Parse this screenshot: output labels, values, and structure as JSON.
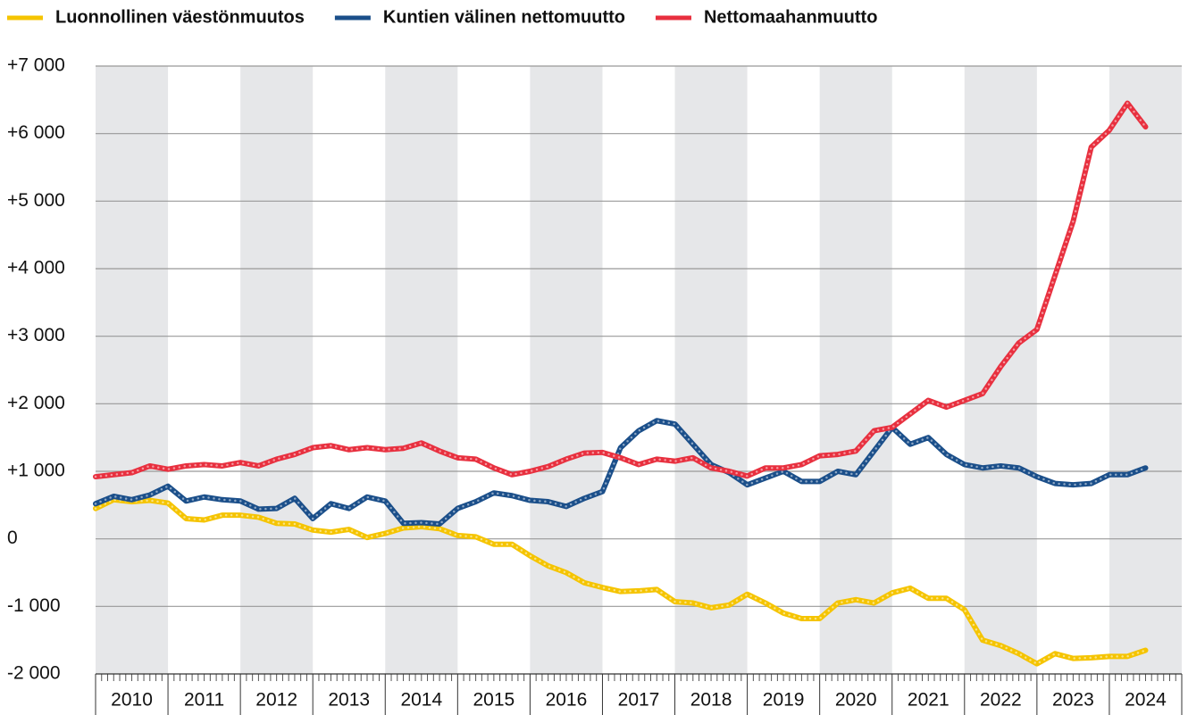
{
  "chart_data": {
    "type": "line",
    "x": [
      2010,
      2010.25,
      2010.5,
      2010.75,
      2011,
      2011.25,
      2011.5,
      2011.75,
      2012,
      2012.25,
      2012.5,
      2012.75,
      2013,
      2013.25,
      2013.5,
      2013.75,
      2014,
      2014.25,
      2014.5,
      2014.75,
      2015,
      2015.25,
      2015.5,
      2015.75,
      2016,
      2016.25,
      2016.5,
      2016.75,
      2017,
      2017.25,
      2017.5,
      2017.75,
      2018,
      2018.25,
      2018.5,
      2018.75,
      2019,
      2019.25,
      2019.5,
      2019.75,
      2020,
      2020.25,
      2020.5,
      2020.75,
      2021,
      2021.25,
      2021.5,
      2021.75,
      2022,
      2022.25,
      2022.5,
      2022.75,
      2023,
      2023.25,
      2023.5,
      2023.75,
      2024,
      2024.25,
      2024.5
    ],
    "series": [
      {
        "name": "Luonnollinen väestönmuutos",
        "color": "#f5c400",
        "values": [
          450,
          580,
          550,
          570,
          530,
          300,
          280,
          350,
          350,
          320,
          230,
          220,
          130,
          100,
          140,
          20,
          80,
          160,
          180,
          150,
          50,
          30,
          -80,
          -80,
          -250,
          -400,
          -500,
          -650,
          -720,
          -780,
          -770,
          -750,
          -930,
          -950,
          -1020,
          -980,
          -820,
          -950,
          -1100,
          -1180,
          -1180,
          -950,
          -900,
          -950,
          -800,
          -730,
          -880,
          -880,
          -1050,
          -1500,
          -1580,
          -1700,
          -1850,
          -1700,
          -1770,
          -1760,
          -1740,
          -1740,
          -1650
        ]
      },
      {
        "name": "Kuntien välinen nettomuutto",
        "color": "#1b4f8a",
        "values": [
          520,
          630,
          580,
          650,
          780,
          560,
          620,
          580,
          560,
          440,
          450,
          600,
          300,
          520,
          450,
          620,
          560,
          230,
          240,
          220,
          450,
          550,
          680,
          640,
          570,
          550,
          480,
          600,
          700,
          1350,
          1600,
          1750,
          1700,
          1400,
          1100,
          980,
          800,
          900,
          1000,
          850,
          850,
          1000,
          950,
          1300,
          1650,
          1400,
          1500,
          1250,
          1100,
          1050,
          1080,
          1050,
          920,
          820,
          800,
          820,
          950,
          950,
          1050
        ]
      },
      {
        "name": "Nettomaahanmuutto",
        "color": "#e8303f",
        "values": [
          920,
          950,
          980,
          1080,
          1030,
          1080,
          1100,
          1080,
          1130,
          1080,
          1180,
          1250,
          1350,
          1380,
          1320,
          1350,
          1320,
          1340,
          1420,
          1300,
          1200,
          1180,
          1050,
          950,
          1000,
          1070,
          1180,
          1270,
          1280,
          1200,
          1100,
          1180,
          1150,
          1200,
          1050,
          1000,
          930,
          1050,
          1050,
          1100,
          1230,
          1250,
          1300,
          1600,
          1650,
          1850,
          2050,
          1950,
          2050,
          2150,
          2550,
          2900,
          3100,
          3900,
          4700,
          5800,
          6050,
          6450,
          6100
        ]
      }
    ],
    "xlim": [
      2010,
      2025
    ],
    "xticks": [
      2010,
      2011,
      2012,
      2013,
      2014,
      2015,
      2016,
      2017,
      2018,
      2019,
      2020,
      2021,
      2022,
      2023,
      2024
    ],
    "ylim": [
      -2000,
      7000
    ],
    "yticks": [
      {
        "value": -2000,
        "label": "-2 000"
      },
      {
        "value": -1000,
        "label": "-1 000"
      },
      0,
      {
        "value": 1000,
        "label": "+1 000"
      },
      {
        "value": 2000,
        "label": "+2 000"
      },
      {
        "value": 3000,
        "label": "+3 000"
      },
      {
        "value": 4000,
        "label": "+4 000"
      },
      {
        "value": 5000,
        "label": "+5 000"
      },
      {
        "value": 6000,
        "label": "+6 000"
      },
      {
        "value": 7000,
        "label": "+7 000"
      }
    ],
    "grid": true
  }
}
